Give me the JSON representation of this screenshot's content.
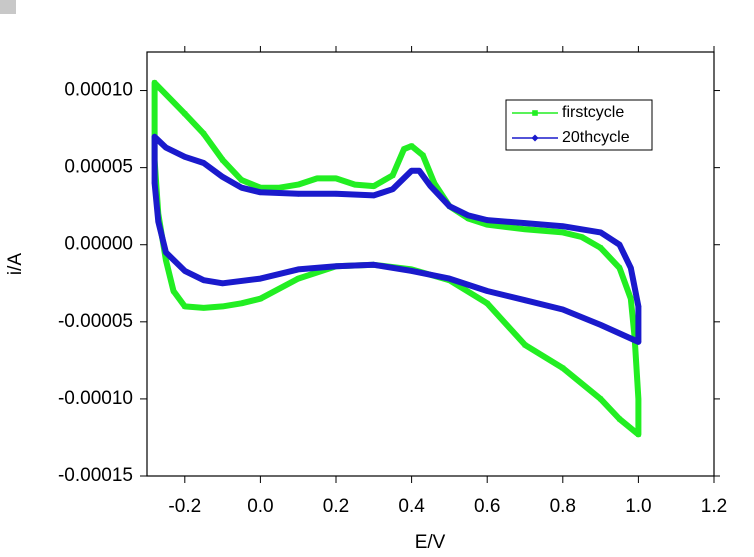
{
  "chart_data": {
    "type": "line",
    "xlabel": "E/V",
    "ylabel": "i/A",
    "xlim": [
      -0.3,
      1.2
    ],
    "ylim": [
      -0.00015,
      0.000125
    ],
    "xticks": [
      -0.2,
      {
        "value": 0,
        "label": "0.0"
      },
      0.2,
      0.4,
      0.6,
      0.8,
      {
        "value": 1,
        "label": "1.0"
      },
      1.2
    ],
    "yticks": [
      {
        "value": -0.00015,
        "label": "-0.00015"
      },
      {
        "value": -0.0001,
        "label": "-0.00010"
      },
      {
        "value": -5e-05,
        "label": "-0.00005"
      },
      {
        "value": 0,
        "label": "0.00000"
      },
      {
        "value": 5e-05,
        "label": "0.00005"
      },
      {
        "value": 0.0001,
        "label": "0.00010"
      }
    ],
    "legend_position": "upper right",
    "series": [
      {
        "name": "firstcycle",
        "color": "#22ee22",
        "marker": "square",
        "x": [
          -0.28,
          -0.2,
          -0.15,
          -0.1,
          -0.05,
          0.0,
          0.05,
          0.1,
          0.15,
          0.2,
          0.25,
          0.3,
          0.35,
          0.38,
          0.4,
          0.43,
          0.46,
          0.5,
          0.55,
          0.6,
          0.7,
          0.8,
          0.85,
          0.9,
          0.95,
          0.98,
          0.99,
          1.0,
          1.0,
          0.95,
          0.9,
          0.8,
          0.7,
          0.6,
          0.5,
          0.4,
          0.3,
          0.2,
          0.1,
          0.0,
          -0.05,
          -0.1,
          -0.15,
          -0.2,
          -0.23,
          -0.25,
          -0.27,
          -0.28,
          -0.28
        ],
        "values": [
          0.000105,
          8.5e-05,
          7.2e-05,
          5.5e-05,
          4.2e-05,
          3.7e-05,
          3.7e-05,
          3.9e-05,
          4.3e-05,
          4.3e-05,
          3.9e-05,
          3.8e-05,
          4.5e-05,
          6.2e-05,
          6.4e-05,
          5.8e-05,
          4e-05,
          2.5e-05,
          1.7e-05,
          1.3e-05,
          1e-05,
          8e-06,
          5e-06,
          -2e-06,
          -1.5e-05,
          -3.5e-05,
          -6e-05,
          -0.0001,
          -0.000123,
          -0.000113,
          -0.0001,
          -8e-05,
          -6.5e-05,
          -3.8e-05,
          -2.3e-05,
          -1.6e-05,
          -1.3e-05,
          -1.4e-05,
          -2.2e-05,
          -3.5e-05,
          -3.8e-05,
          -4e-05,
          -4.1e-05,
          -4e-05,
          -3e-05,
          -1e-05,
          2e-05,
          5.5e-05,
          0.000105
        ]
      },
      {
        "name": "20thcycle",
        "color": "#1a1acc",
        "marker": "diamond",
        "x": [
          -0.28,
          -0.25,
          -0.2,
          -0.15,
          -0.1,
          -0.05,
          0.0,
          0.1,
          0.2,
          0.3,
          0.35,
          0.4,
          0.42,
          0.45,
          0.5,
          0.55,
          0.6,
          0.7,
          0.8,
          0.9,
          0.95,
          0.98,
          1.0,
          1.0,
          0.9,
          0.8,
          0.7,
          0.6,
          0.5,
          0.4,
          0.3,
          0.2,
          0.1,
          0.0,
          -0.1,
          -0.15,
          -0.2,
          -0.25,
          -0.27,
          -0.28,
          -0.28
        ],
        "values": [
          7e-05,
          6.3e-05,
          5.7e-05,
          5.3e-05,
          4.4e-05,
          3.7e-05,
          3.4e-05,
          3.3e-05,
          3.3e-05,
          3.2e-05,
          3.6e-05,
          4.8e-05,
          4.8e-05,
          3.8e-05,
          2.5e-05,
          1.9e-05,
          1.6e-05,
          1.4e-05,
          1.2e-05,
          8e-06,
          0.0,
          -1.5e-05,
          -4e-05,
          -6.3e-05,
          -5.2e-05,
          -4.2e-05,
          -3.6e-05,
          -3e-05,
          -2.2e-05,
          -1.7e-05,
          -1.3e-05,
          -1.4e-05,
          -1.6e-05,
          -2.2e-05,
          -2.5e-05,
          -2.3e-05,
          -1.7e-05,
          -5e-06,
          1.5e-05,
          4e-05,
          7e-05
        ]
      }
    ]
  }
}
